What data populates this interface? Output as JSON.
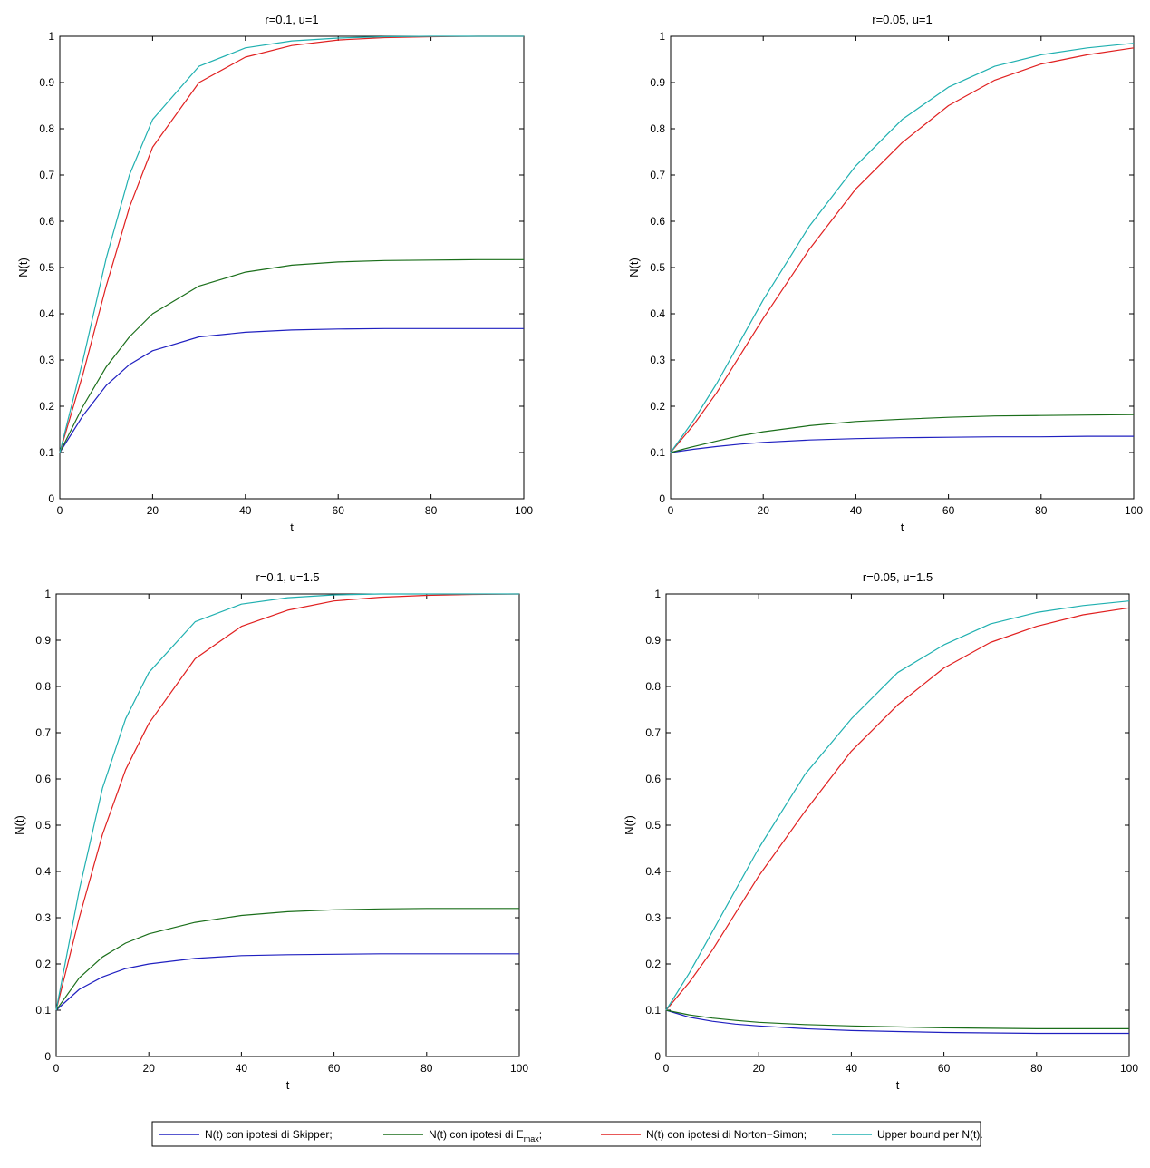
{
  "chart_data": [
    {
      "type": "line",
      "title": "r=0.1, u=1",
      "xlabel": "t",
      "ylabel": "N(t)",
      "xlim": [
        0,
        100
      ],
      "ylim": [
        0,
        1
      ],
      "xticks": [
        0,
        20,
        40,
        60,
        80,
        100
      ],
      "yticks": [
        0,
        0.1,
        0.2,
        0.3,
        0.4,
        0.5,
        0.6,
        0.7,
        0.8,
        0.9,
        1
      ],
      "grid": false,
      "x": [
        0,
        5,
        10,
        15,
        20,
        30,
        40,
        50,
        60,
        70,
        80,
        90,
        100
      ],
      "series": [
        {
          "color": "#2020c0",
          "values": [
            0.1,
            0.18,
            0.245,
            0.29,
            0.32,
            0.35,
            0.36,
            0.365,
            0.367,
            0.368,
            0.368,
            0.368,
            0.368
          ]
        },
        {
          "color": "#1a6e1a",
          "values": [
            0.1,
            0.2,
            0.285,
            0.35,
            0.4,
            0.46,
            0.49,
            0.505,
            0.512,
            0.515,
            0.516,
            0.517,
            0.517
          ]
        },
        {
          "color": "#e02020",
          "values": [
            0.1,
            0.27,
            0.46,
            0.63,
            0.76,
            0.9,
            0.955,
            0.98,
            0.992,
            0.997,
            0.999,
            1.0,
            1.0
          ]
        },
        {
          "color": "#20b0b0",
          "values": [
            0.1,
            0.3,
            0.52,
            0.7,
            0.82,
            0.935,
            0.975,
            0.99,
            0.996,
            0.999,
            1.0,
            1.0,
            1.0
          ]
        }
      ]
    },
    {
      "type": "line",
      "title": "r=0.05, u=1",
      "xlabel": "t",
      "ylabel": "N(t)",
      "xlim": [
        0,
        100
      ],
      "ylim": [
        0,
        1
      ],
      "xticks": [
        0,
        20,
        40,
        60,
        80,
        100
      ],
      "yticks": [
        0,
        0.1,
        0.2,
        0.3,
        0.4,
        0.5,
        0.6,
        0.7,
        0.8,
        0.9,
        1
      ],
      "grid": false,
      "x": [
        0,
        5,
        10,
        15,
        20,
        30,
        40,
        50,
        60,
        70,
        80,
        90,
        100
      ],
      "series": [
        {
          "color": "#2020c0",
          "values": [
            0.1,
            0.107,
            0.113,
            0.118,
            0.122,
            0.127,
            0.13,
            0.132,
            0.133,
            0.134,
            0.134,
            0.135,
            0.135
          ]
        },
        {
          "color": "#1a6e1a",
          "values": [
            0.1,
            0.113,
            0.125,
            0.136,
            0.145,
            0.158,
            0.167,
            0.172,
            0.176,
            0.179,
            0.18,
            0.181,
            0.182
          ]
        },
        {
          "color": "#e02020",
          "values": [
            0.1,
            0.16,
            0.23,
            0.31,
            0.39,
            0.54,
            0.67,
            0.77,
            0.85,
            0.905,
            0.94,
            0.96,
            0.975
          ]
        },
        {
          "color": "#20b0b0",
          "values": [
            0.1,
            0.17,
            0.25,
            0.34,
            0.43,
            0.59,
            0.72,
            0.82,
            0.89,
            0.935,
            0.96,
            0.975,
            0.985
          ]
        }
      ]
    },
    {
      "type": "line",
      "title": "r=0.1, u=1.5",
      "xlabel": "t",
      "ylabel": "N(t)",
      "xlim": [
        0,
        100
      ],
      "ylim": [
        0,
        1
      ],
      "xticks": [
        0,
        20,
        40,
        60,
        80,
        100
      ],
      "yticks": [
        0,
        0.1,
        0.2,
        0.3,
        0.4,
        0.5,
        0.6,
        0.7,
        0.8,
        0.9,
        1
      ],
      "grid": false,
      "x": [
        0,
        5,
        10,
        15,
        20,
        30,
        40,
        50,
        60,
        70,
        80,
        90,
        100
      ],
      "series": [
        {
          "color": "#2020c0",
          "values": [
            0.1,
            0.145,
            0.172,
            0.19,
            0.2,
            0.212,
            0.218,
            0.22,
            0.221,
            0.222,
            0.222,
            0.222,
            0.222
          ]
        },
        {
          "color": "#1a6e1a",
          "values": [
            0.1,
            0.17,
            0.215,
            0.245,
            0.265,
            0.29,
            0.305,
            0.313,
            0.317,
            0.319,
            0.32,
            0.32,
            0.32
          ]
        },
        {
          "color": "#e02020",
          "values": [
            0.1,
            0.3,
            0.48,
            0.62,
            0.72,
            0.86,
            0.93,
            0.965,
            0.985,
            0.993,
            0.997,
            0.999,
            1.0
          ]
        },
        {
          "color": "#20b0b0",
          "values": [
            0.1,
            0.36,
            0.58,
            0.73,
            0.83,
            0.94,
            0.978,
            0.992,
            0.998,
            1.0,
            1.0,
            1.0,
            1.0
          ]
        }
      ]
    },
    {
      "type": "line",
      "title": "r=0.05, u=1.5",
      "xlabel": "t",
      "ylabel": "N(t)",
      "xlim": [
        0,
        100
      ],
      "ylim": [
        0,
        1
      ],
      "xticks": [
        0,
        20,
        40,
        60,
        80,
        100
      ],
      "yticks": [
        0,
        0.1,
        0.2,
        0.3,
        0.4,
        0.5,
        0.6,
        0.7,
        0.8,
        0.9,
        1
      ],
      "grid": false,
      "x": [
        0,
        5,
        10,
        15,
        20,
        30,
        40,
        50,
        60,
        70,
        80,
        90,
        100
      ],
      "series": [
        {
          "color": "#2020c0",
          "values": [
            0.1,
            0.085,
            0.076,
            0.07,
            0.066,
            0.06,
            0.056,
            0.054,
            0.052,
            0.051,
            0.05,
            0.05,
            0.05
          ]
        },
        {
          "color": "#1a6e1a",
          "values": [
            0.1,
            0.09,
            0.083,
            0.078,
            0.074,
            0.069,
            0.066,
            0.064,
            0.062,
            0.061,
            0.06,
            0.06,
            0.06
          ]
        },
        {
          "color": "#e02020",
          "values": [
            0.1,
            0.16,
            0.23,
            0.31,
            0.39,
            0.53,
            0.66,
            0.76,
            0.84,
            0.895,
            0.93,
            0.955,
            0.97
          ]
        },
        {
          "color": "#20b0b0",
          "values": [
            0.1,
            0.18,
            0.27,
            0.36,
            0.45,
            0.61,
            0.73,
            0.83,
            0.89,
            0.935,
            0.96,
            0.975,
            0.985
          ]
        }
      ]
    }
  ],
  "legend": {
    "placement": "bottom-center",
    "entries": [
      {
        "label": "N(t) con ipotesi di Skipper;",
        "color": "#2020c0"
      },
      {
        "label": "N(t) con ipotesi di E",
        "sub": "max",
        "suffix": ";",
        "color": "#1a6e1a"
      },
      {
        "label": "N(t) con ipotesi di Norton−Simon;",
        "color": "#e02020"
      },
      {
        "label": "Upper bound per N(t).",
        "color": "#20b0b0"
      }
    ]
  }
}
